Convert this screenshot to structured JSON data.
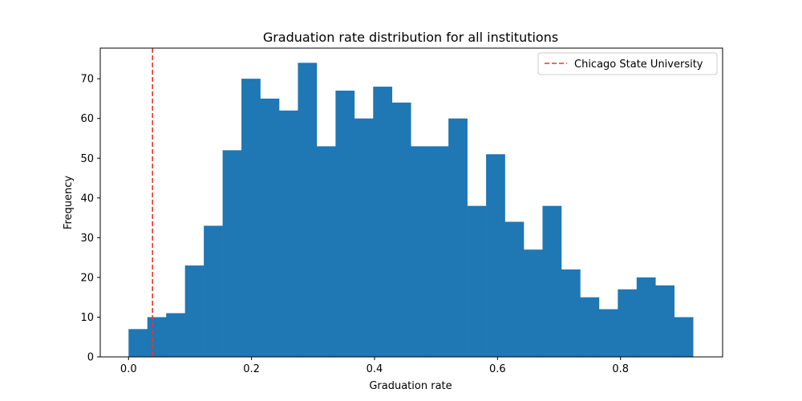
{
  "chart_data": {
    "type": "bar",
    "title": "Graduation rate distribution for all institutions",
    "xlabel": "Graduation rate",
    "ylabel": "Frequency",
    "xlim": [
      -0.046,
      0.966
    ],
    "ylim": [
      0,
      77.7
    ],
    "x_ticks": [
      0.0,
      0.2,
      0.4,
      0.6,
      0.8
    ],
    "x_tick_labels": [
      "0.0",
      "0.2",
      "0.4",
      "0.6",
      "0.8"
    ],
    "y_ticks": [
      0,
      10,
      20,
      30,
      40,
      50,
      60,
      70
    ],
    "y_tick_labels": [
      "0",
      "10",
      "20",
      "30",
      "40",
      "50",
      "60",
      "70"
    ],
    "bin_start": 0.0,
    "bin_width": 0.0306,
    "values": [
      7,
      10,
      11,
      23,
      33,
      52,
      70,
      65,
      62,
      74,
      53,
      67,
      60,
      68,
      64,
      53,
      53,
      60,
      38,
      51,
      34,
      27,
      38,
      22,
      15,
      12,
      17,
      20,
      18,
      10
    ],
    "bar_color": "#1f77b4",
    "reference_line": {
      "x": 0.039,
      "label": "Chicago State University",
      "color": "#e8362d",
      "style": "dashed"
    },
    "legend_position": "top-right",
    "grid": false
  }
}
